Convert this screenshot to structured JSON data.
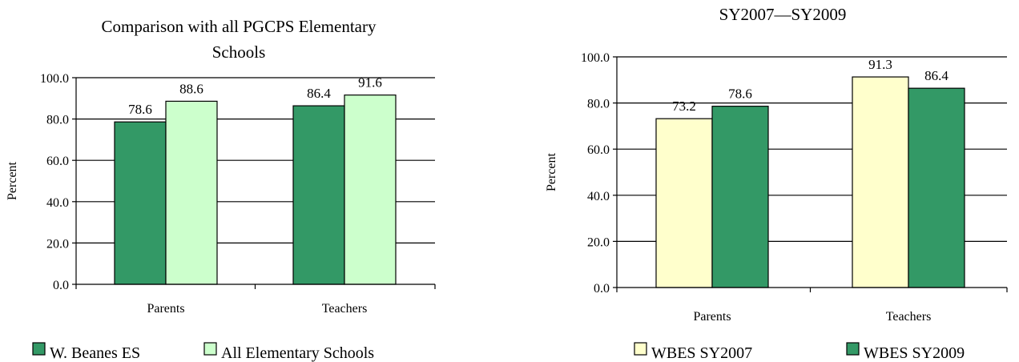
{
  "colors": {
    "dark_green": "#339966",
    "light_green": "#CCFFCC",
    "light_yellow": "#FFFFCC"
  },
  "chart_data": [
    {
      "type": "bar",
      "title_lines": [
        "Comparison with all PGCPS Elementary",
        "Schools"
      ],
      "ylabel": "Percent",
      "xlabel": "",
      "categories": [
        "Parents",
        "Teachers"
      ],
      "ylim": [
        0,
        100
      ],
      "yticks": [
        "0.0",
        "20.0",
        "40.0",
        "60.0",
        "80.0",
        "100.0"
      ],
      "grid": true,
      "legend_position": "bottom",
      "series": [
        {
          "name": "W. Beanes ES",
          "values": [
            78.6,
            86.4
          ],
          "labels": [
            "78.6",
            "86.4"
          ],
          "color": "#339966"
        },
        {
          "name": "All Elementary Schools",
          "values": [
            88.6,
            91.6
          ],
          "labels": [
            "88.6",
            "91.6"
          ],
          "color": "#CCFFCC"
        }
      ]
    },
    {
      "type": "bar",
      "title_lines": [
        "SY2007—SY2009"
      ],
      "ylabel": "Percent",
      "xlabel": "",
      "categories": [
        "Parents",
        "Teachers"
      ],
      "ylim": [
        0,
        100
      ],
      "yticks": [
        "0.0",
        "20.0",
        "40.0",
        "60.0",
        "80.0",
        "100.0"
      ],
      "grid": true,
      "legend_position": "bottom",
      "series": [
        {
          "name": "WBES SY2007",
          "values": [
            73.2,
            91.3
          ],
          "labels": [
            "73.2",
            "91.3"
          ],
          "color": "#FFFFCC"
        },
        {
          "name": "WBES SY2009",
          "values": [
            78.6,
            86.4
          ],
          "labels": [
            "78.6",
            "86.4"
          ],
          "color": "#339966"
        }
      ]
    }
  ]
}
